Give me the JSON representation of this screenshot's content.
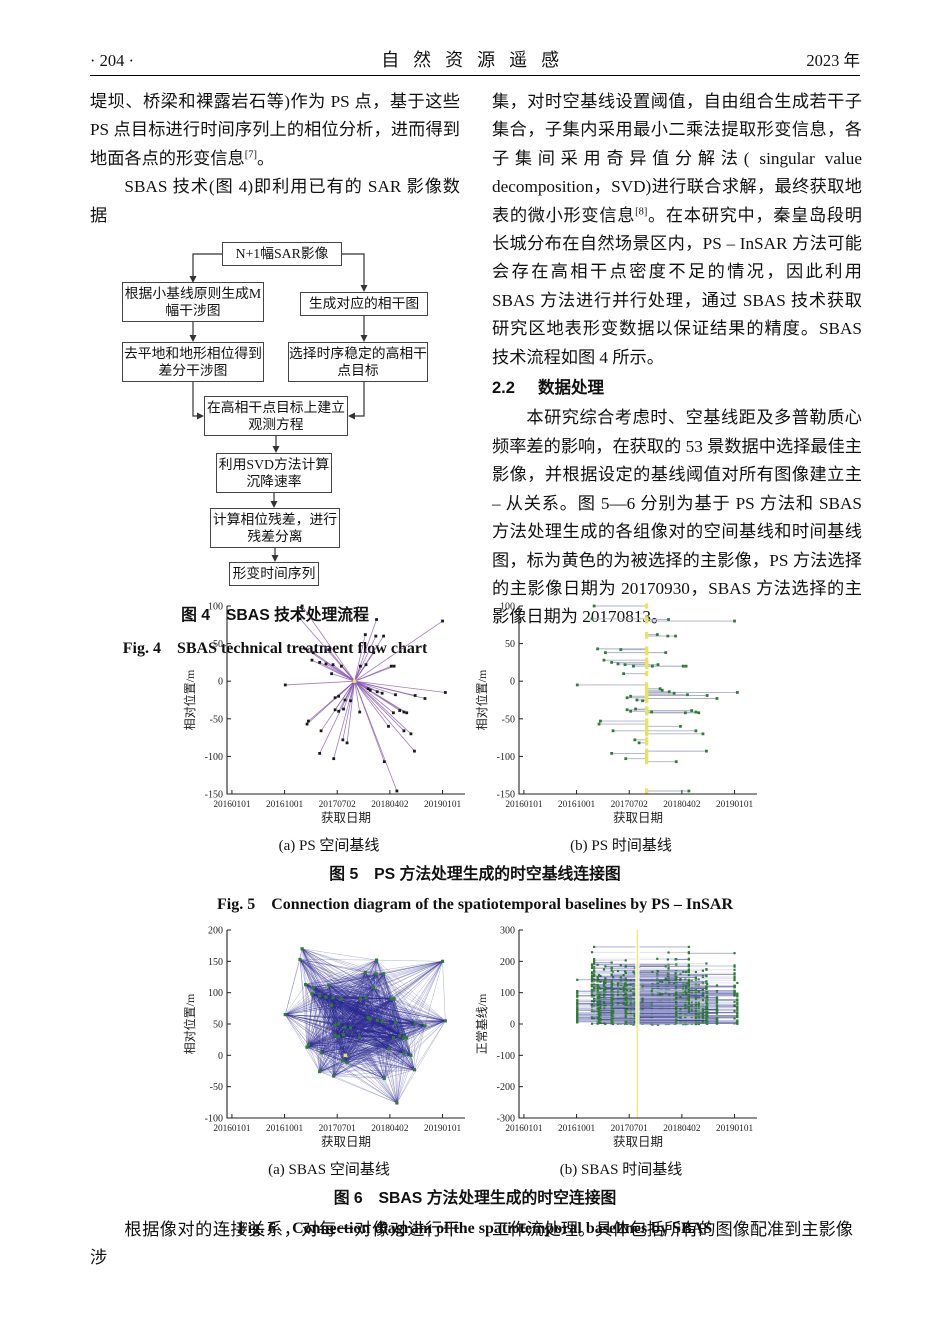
{
  "header": {
    "page_number": "· 204 ·",
    "journal_title": "自然资源遥感",
    "year": "2023 年"
  },
  "left_column": {
    "para1_text": "堤坝、桥梁和裸露岩石等)作为 PS 点，基于这些 PS 点目标进行时间序列上的相位分析，进而得到地面各点的形变信息",
    "para1_ref": "[7]",
    "para1_tail": "。",
    "para2_text": "SBAS 技术(图 4)即利用已有的 SAR 影像数据"
  },
  "right_column": {
    "para1_text": "集，对时空基线设置阈值，自由组合生成若干子集合，子集内采用最小二乘法提取形变信息，各子集间采用奇异值分解法( singular value decomposition，SVD)进行联合求解，最终获取地表的微小形变信息",
    "para1_ref": "[8]",
    "para1_tail": "。在本研究中，秦皇岛段明长城分布在自然场景区内，PS – InSAR 方法可能会存在高相干点密度不足的情况，因此利用 SBAS 方法进行并行处理，通过 SBAS 技术获取研究区地表形变数据以保证结果的精度。SBAS 技术流程如图 4 所示。",
    "section_number": "2.2",
    "section_title": "数据处理",
    "para2_text": "本研究综合考虑时、空基线距及多普勒质心频率差的影响，在获取的 53 景数据中选择最佳主影像，并根据设定的基线阈值对所有图像建立主 – 从关系。图 5—6 分别为基于 PS 方法和 SBAS 方法处理生成的各组像对的空间基线和时间基线图，标为黄色的为被选择的主影像，PS 方法选择的主影像日期为 20170930，SBAS 方法选择的主影像日期为 20170813。"
  },
  "flowchart": {
    "nodes": {
      "a": "N+1幅SAR影像",
      "b": "根据小基线原则生成M\n幅干涉图",
      "c": "生成对应的相干图",
      "d": "去平地和地形相位得到\n差分干涉图",
      "e": "选择时序稳定的高相干\n点目标",
      "f": "在高相干点目标上建立\n观测方程",
      "g": "利用SVD方法计算\n沉降速率",
      "h": "计算相位残差，进行\n残差分离",
      "i": "形变时间序列"
    }
  },
  "figure4": {
    "caption_zh": "图 4　SBAS 技术处理流程",
    "caption_en": "Fig. 4　SBAS technical treatment flow chart"
  },
  "figure5": {
    "sub_a": "(a) PS 空间基线",
    "sub_b": "(b) PS 时间基线",
    "caption_zh": "图 5　PS 方法处理生成的时空基线连接图",
    "caption_en": "Fig. 5　Connection diagram of the spatiotemporal baselines by PS – InSAR"
  },
  "figure6": {
    "sub_a": "(a) SBAS 空间基线",
    "sub_b": "(b) SBAS 时间基线",
    "caption_zh": "图 6　SBAS 方法处理生成的时空连接图",
    "caption_en": "Fig. 6　Connection diagram of the spatiotemporal baselines by SBAS"
  },
  "bottom": {
    "left_text": "根据像对的连接关系，对每一对像对进行干涉",
    "right_text": "工作流处理。具体包括所有的图像配准到主影像"
  },
  "colors": {
    "ps_line": "#8a5bb5",
    "ps_point": "#1a1a1a",
    "temporal_line": "#a9afc8",
    "green_point": "#2f7d32",
    "master_yellow": "#e9e45a",
    "mesh_edge": "#28288f",
    "mesh_pale": "#b9bcd8",
    "axis": "#222222"
  },
  "chart_data": [
    {
      "id": "fig5a",
      "type": "scatter",
      "style": "star",
      "title": "(a) PS 空间基线",
      "xlabel": "获取日期",
      "ylabel": "相对位置/m",
      "xlim": [
        2015.93,
        2019.32
      ],
      "ylim": [
        -150,
        100
      ],
      "y_ticks": [
        100,
        50,
        0,
        -50,
        -100,
        -150
      ],
      "x_ticks": [
        {
          "v": 2016.0,
          "label": "20160101"
        },
        {
          "v": 2016.75,
          "label": "20161001"
        },
        {
          "v": 2017.5,
          "label": "20170702"
        },
        {
          "v": 2018.25,
          "label": "20180402"
        },
        {
          "v": 2019.0,
          "label": "20190101"
        }
      ],
      "master": {
        "x": 2017.748,
        "y": 0,
        "date": "20170930"
      },
      "note": "purple baselines radiate from the master image to every slave acquisition",
      "points": [
        [
          2017.0,
          100
        ],
        [
          2016.97,
          83
        ],
        [
          2018.06,
          82
        ],
        [
          2019.0,
          80
        ],
        [
          2017.9,
          62
        ],
        [
          2018.05,
          60
        ],
        [
          2018.16,
          60
        ],
        [
          2017.05,
          43
        ],
        [
          2017.38,
          42
        ],
        [
          2017.16,
          38
        ],
        [
          2018.02,
          38
        ],
        [
          2017.14,
          28
        ],
        [
          2017.25,
          25
        ],
        [
          2017.34,
          23
        ],
        [
          2017.44,
          22
        ],
        [
          2017.56,
          20
        ],
        [
          2017.83,
          20
        ],
        [
          2017.91,
          22
        ],
        [
          2018.27,
          20
        ],
        [
          2018.31,
          20
        ],
        [
          2017.42,
          10
        ],
        [
          2016.76,
          -5
        ],
        [
          2017.94,
          -10
        ],
        [
          2017.97,
          -12
        ],
        [
          2018.07,
          -14
        ],
        [
          2019.04,
          -15
        ],
        [
          2018.14,
          -16
        ],
        [
          2018.33,
          -18
        ],
        [
          2018.61,
          -19
        ],
        [
          2017.52,
          -20
        ],
        [
          2017.47,
          -22
        ],
        [
          2018.75,
          -23
        ],
        [
          2017.61,
          -25
        ],
        [
          2017.69,
          -26
        ],
        [
          2017.59,
          -37
        ],
        [
          2017.47,
          -38
        ],
        [
          2018.39,
          -39
        ],
        [
          2017.52,
          -40
        ],
        [
          2017.82,
          -41
        ],
        [
          2018.45,
          -41
        ],
        [
          2018.3,
          -42
        ],
        [
          2018.49,
          -42
        ],
        [
          2017.09,
          -53
        ],
        [
          2017.07,
          -57
        ],
        [
          2018.23,
          -60
        ],
        [
          2017.27,
          -66
        ],
        [
          2018.45,
          -66
        ],
        [
          2018.55,
          -70
        ],
        [
          2017.58,
          -78
        ],
        [
          2017.64,
          -82
        ],
        [
          2018.6,
          -93
        ],
        [
          2017.25,
          -96
        ],
        [
          2017.45,
          -103
        ],
        [
          2018.17,
          -107
        ],
        [
          2018.35,
          -146
        ]
      ]
    },
    {
      "id": "fig5b",
      "type": "scatter",
      "style": "htree",
      "title": "(b) PS 时间基线",
      "xlabel": "获取日期",
      "ylabel": "相对位置/m",
      "xlim": [
        2015.93,
        2019.32
      ],
      "ylim": [
        -150,
        100
      ],
      "y_ticks": [
        100,
        50,
        0,
        -50,
        -100,
        -150
      ],
      "x_ticks": [
        {
          "v": 2016.0,
          "label": "20160101"
        },
        {
          "v": 2016.75,
          "label": "20161001"
        },
        {
          "v": 2017.5,
          "label": "20170702"
        },
        {
          "v": 2018.25,
          "label": "20180402"
        },
        {
          "v": 2019.0,
          "label": "20190101"
        }
      ],
      "master": {
        "x": 2017.748,
        "y": 0,
        "date": "20170930"
      },
      "note": "horizontal temporal baselines link the yellow master column to each green slave point",
      "points_ref": "fig5a"
    },
    {
      "id": "fig6a",
      "type": "scatter",
      "style": "mesh",
      "title": "(a) SBAS 空间基线",
      "xlabel": "获取日期",
      "ylabel": "相对位置/m",
      "xlim": [
        2015.93,
        2019.32
      ],
      "ylim": [
        -100,
        200
      ],
      "y_ticks": [
        200,
        150,
        100,
        50,
        0,
        -50,
        -100
      ],
      "x_ticks": [
        {
          "v": 2016.0,
          "label": "20160101"
        },
        {
          "v": 2016.75,
          "label": "20161001"
        },
        {
          "v": 2017.5,
          "label": "20170701"
        },
        {
          "v": 2018.25,
          "label": "20180402"
        },
        {
          "v": 2019.0,
          "label": "20190101"
        }
      ],
      "master": {
        "x": 2017.617,
        "y": 0,
        "date": "20170813"
      },
      "edge_rule": {
        "max_dx_years": 1.9,
        "max_dy_m": 140
      },
      "note": "dense blue mesh of small-baseline interferogram pairs between green acquisitions",
      "points": [
        [
          2017.0,
          170
        ],
        [
          2016.97,
          153
        ],
        [
          2018.06,
          152
        ],
        [
          2019.0,
          150
        ],
        [
          2017.9,
          132
        ],
        [
          2018.05,
          130
        ],
        [
          2018.16,
          130
        ],
        [
          2017.05,
          113
        ],
        [
          2017.38,
          112
        ],
        [
          2017.16,
          108
        ],
        [
          2018.02,
          108
        ],
        [
          2017.14,
          98
        ],
        [
          2017.25,
          95
        ],
        [
          2017.34,
          93
        ],
        [
          2017.44,
          92
        ],
        [
          2017.56,
          90
        ],
        [
          2017.83,
          90
        ],
        [
          2017.91,
          92
        ],
        [
          2018.27,
          90
        ],
        [
          2018.31,
          90
        ],
        [
          2017.42,
          80
        ],
        [
          2016.76,
          65
        ],
        [
          2017.94,
          60
        ],
        [
          2017.97,
          58
        ],
        [
          2018.07,
          56
        ],
        [
          2019.04,
          55
        ],
        [
          2018.14,
          54
        ],
        [
          2018.33,
          52
        ],
        [
          2018.61,
          51
        ],
        [
          2017.52,
          50
        ],
        [
          2017.47,
          48
        ],
        [
          2018.75,
          47
        ],
        [
          2017.61,
          45
        ],
        [
          2017.69,
          44
        ],
        [
          2017.59,
          33
        ],
        [
          2017.47,
          32
        ],
        [
          2018.39,
          31
        ],
        [
          2017.52,
          30
        ],
        [
          2017.82,
          29
        ],
        [
          2018.45,
          29
        ],
        [
          2018.3,
          28
        ],
        [
          2018.49,
          28
        ],
        [
          2017.09,
          17
        ],
        [
          2017.07,
          13
        ],
        [
          2018.23,
          10
        ],
        [
          2017.27,
          4
        ],
        [
          2018.45,
          4
        ],
        [
          2018.55,
          0
        ],
        [
          2017.58,
          -8
        ],
        [
          2017.64,
          -12
        ],
        [
          2018.6,
          -23
        ],
        [
          2017.25,
          -26
        ],
        [
          2017.45,
          -33
        ],
        [
          2018.17,
          -37
        ],
        [
          2018.35,
          -76
        ]
      ]
    },
    {
      "id": "fig6b",
      "type": "scatter",
      "style": "hsegs",
      "title": "(b) SBAS 时间基线",
      "xlabel": "获取日期",
      "ylabel": "正常基线/m",
      "xlim": [
        2015.93,
        2019.32
      ],
      "ylim": [
        -300,
        300
      ],
      "y_ticks": [
        300,
        200,
        100,
        0,
        -100,
        -200,
        -300
      ],
      "x_ticks": [
        {
          "v": 2016.0,
          "label": "20160101"
        },
        {
          "v": 2016.75,
          "label": "20161001"
        },
        {
          "v": 2017.5,
          "label": "20170701"
        },
        {
          "v": 2018.25,
          "label": "20180402"
        },
        {
          "v": 2019.0,
          "label": "20190101"
        }
      ],
      "master": {
        "x": 2017.617,
        "y": 0,
        "date": "20170813"
      },
      "edge_rule": {
        "max_dx_years": 1.6,
        "max_dy_m": 250
      },
      "note": "each interferogram pair drawn as a horizontal segment at its normal-baseline difference; white gap at master date",
      "points_ref": "fig6a"
    }
  ]
}
